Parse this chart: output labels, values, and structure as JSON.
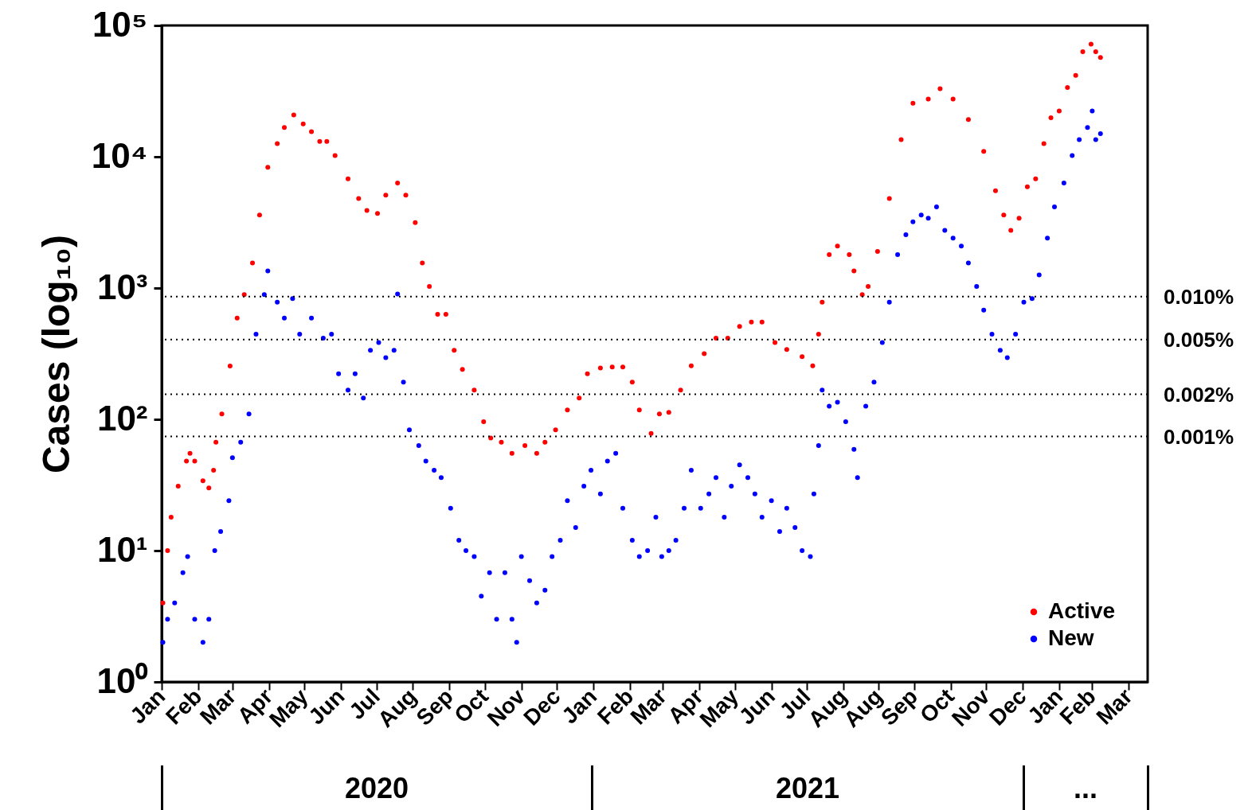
{
  "chart_data": {
    "type": "scatter",
    "ylabel": "Cases (log₁₀)",
    "log": "y",
    "grid": false,
    "legend": "bottom right",
    "marker": "circle",
    "xlim": [
      "2020-01-01",
      "2022-04-16"
    ],
    "xticks": [
      {
        "value": "2020-01-01",
        "label": "Jan"
      },
      {
        "value": "2020-02-01",
        "label": "Feb"
      },
      {
        "value": "2020-03-01",
        "label": "Mar"
      },
      {
        "value": "2020-04-01",
        "label": "Apr"
      },
      {
        "value": "2020-05-01",
        "label": "May"
      },
      {
        "value": "2020-06-01",
        "label": "Jun"
      },
      {
        "value": "2020-07-01",
        "label": "Jul"
      },
      {
        "value": "2020-08-01",
        "label": "Aug"
      },
      {
        "value": "2020-09-01",
        "label": "Sep"
      },
      {
        "value": "2020-10-01",
        "label": "Oct"
      },
      {
        "value": "2020-11-01",
        "label": "Nov"
      },
      {
        "value": "2020-12-01",
        "label": "Dec"
      },
      {
        "value": "2021-01-01",
        "label": "Jan"
      },
      {
        "value": "2021-02-01",
        "label": "Feb"
      },
      {
        "value": "2021-03-01",
        "label": "Mar"
      },
      {
        "value": "2021-04-01",
        "label": "Apr"
      },
      {
        "value": "2021-05-01",
        "label": "May"
      },
      {
        "value": "2021-06-01",
        "label": "Jun"
      },
      {
        "value": "2021-07-01",
        "label": "Jul"
      },
      {
        "value": "2021-08-01",
        "label": "Aug"
      },
      {
        "value": "2021-08-31",
        "label": "Aug"
      },
      {
        "value": "2021-09-30",
        "label": "Sep"
      },
      {
        "value": "2021-10-31",
        "label": "Oct"
      },
      {
        "value": "2021-11-30",
        "label": "Nov"
      },
      {
        "value": "2021-12-31",
        "label": "Dec"
      },
      {
        "value": "2022-01-31",
        "label": "Jan"
      },
      {
        "value": "2022-02-28",
        "label": "Feb"
      },
      {
        "value": "2022-03-31",
        "label": "Mar"
      }
    ],
    "ylim": [
      1,
      100000
    ],
    "yticks": [
      {
        "value": 1,
        "label": "10⁰"
      },
      {
        "value": 10,
        "label": "10¹"
      },
      {
        "value": 100,
        "label": "10²"
      },
      {
        "value": 1000,
        "label": "10³"
      },
      {
        "value": 10000,
        "label": "10⁴"
      },
      {
        "value": 100000,
        "label": "10⁵"
      }
    ],
    "ref_lines": [
      {
        "axis": "y",
        "value": 860,
        "color": "#000000",
        "line_style": "dotted"
      },
      {
        "axis": "y",
        "value": 405,
        "color": "#000000",
        "line_style": "dotted"
      },
      {
        "axis": "y",
        "value": 155,
        "color": "#000000",
        "line_style": "dotted"
      },
      {
        "axis": "y",
        "value": 74,
        "color": "#000000",
        "line_style": "dotted"
      }
    ],
    "annotations": [
      "2020",
      "2021",
      "...",
      "0.010%",
      "0.005%",
      "0.002%",
      "0.001%"
    ],
    "series": [
      {
        "name": "Active",
        "color": "#ff0000",
        "x": [
          "2020-01-02",
          "2020-01-06",
          "2020-01-09",
          "2020-01-15",
          "2020-01-22",
          "2020-01-25",
          "2020-01-29",
          "2020-02-05",
          "2020-02-10",
          "2020-02-14",
          "2020-02-16",
          "2020-02-21",
          "2020-02-28",
          "2020-03-05",
          "2020-03-11",
          "2020-03-18",
          "2020-03-24",
          "2020-03-31",
          "2020-04-08",
          "2020-04-14",
          "2020-04-22",
          "2020-04-30",
          "2020-05-07",
          "2020-05-14",
          "2020-05-20",
          "2020-05-27",
          "2020-06-07",
          "2020-06-16",
          "2020-06-23",
          "2020-07-02",
          "2020-07-09",
          "2020-07-19",
          "2020-07-26",
          "2020-08-03",
          "2020-08-09",
          "2020-08-15",
          "2020-08-22",
          "2020-08-29",
          "2020-09-05",
          "2020-09-12",
          "2020-09-22",
          "2020-09-30",
          "2020-10-06",
          "2020-10-15",
          "2020-10-24",
          "2020-11-04",
          "2020-11-14",
          "2020-11-21",
          "2020-11-30",
          "2020-12-10",
          "2020-12-20",
          "2020-12-27",
          "2021-01-07",
          "2021-01-17",
          "2021-01-26",
          "2021-02-03",
          "2021-02-09",
          "2021-02-19",
          "2021-02-26",
          "2021-03-06",
          "2021-03-16",
          "2021-03-25",
          "2021-04-05",
          "2021-04-15",
          "2021-04-25",
          "2021-05-05",
          "2021-05-15",
          "2021-05-24",
          "2021-06-04",
          "2021-06-14",
          "2021-06-27",
          "2021-07-06",
          "2021-07-11",
          "2021-07-14",
          "2021-07-20",
          "2021-07-27",
          "2021-08-06",
          "2021-08-10",
          "2021-08-17",
          "2021-08-22",
          "2021-08-30",
          "2021-09-09",
          "2021-09-19",
          "2021-09-29",
          "2021-10-12",
          "2021-10-22",
          "2021-11-02",
          "2021-11-15",
          "2021-11-28",
          "2021-12-08",
          "2021-12-15",
          "2021-12-21",
          "2021-12-28",
          "2022-01-04",
          "2022-01-11",
          "2022-01-18",
          "2022-01-24",
          "2022-01-31",
          "2022-02-07",
          "2022-02-14",
          "2022-02-20",
          "2022-02-27",
          "2022-03-03",
          "2022-03-07"
        ],
        "values": [
          4,
          10,
          18,
          31,
          48,
          55,
          48,
          34,
          30,
          41,
          67,
          110,
          255,
          590,
          890,
          1550,
          3600,
          8300,
          12600,
          16700,
          20800,
          17800,
          15500,
          13100,
          13100,
          10200,
          6800,
          4800,
          3900,
          3700,
          5100,
          6300,
          5100,
          3150,
          1550,
          1030,
          630,
          630,
          335,
          240,
          167,
          96,
          72,
          67,
          55,
          63,
          55,
          67,
          83,
          118,
          145,
          222,
          246,
          250,
          250,
          192,
          118,
          78,
          110,
          113,
          167,
          256,
          316,
          415,
          415,
          510,
          550,
          550,
          385,
          340,
          300,
          256,
          445,
          780,
          1800,
          2090,
          1800,
          1350,
          890,
          1030,
          1900,
          4800,
          13500,
          25600,
          27500,
          33000,
          27500,
          19200,
          11000,
          5500,
          3600,
          2750,
          3400,
          5900,
          6800,
          12600,
          19800,
          22300,
          33700,
          41700,
          63000,
          72000,
          63000,
          57000
        ]
      },
      {
        "name": "New",
        "color": "#0000ff",
        "x": [
          "2020-01-02",
          "2020-01-06",
          "2020-01-12",
          "2020-01-19",
          "2020-01-23",
          "2020-01-29",
          "2020-02-05",
          "2020-02-10",
          "2020-02-15",
          "2020-02-20",
          "2020-02-27",
          "2020-03-01",
          "2020-03-08",
          "2020-03-15",
          "2020-03-21",
          "2020-03-28",
          "2020-03-31",
          "2020-04-08",
          "2020-04-14",
          "2020-04-21",
          "2020-04-27",
          "2020-05-07",
          "2020-05-17",
          "2020-05-24",
          "2020-05-30",
          "2020-06-07",
          "2020-06-13",
          "2020-06-20",
          "2020-06-26",
          "2020-07-03",
          "2020-07-09",
          "2020-07-16",
          "2020-07-19",
          "2020-07-24",
          "2020-07-29",
          "2020-08-06",
          "2020-08-12",
          "2020-08-19",
          "2020-08-25",
          "2020-09-02",
          "2020-09-09",
          "2020-09-15",
          "2020-09-22",
          "2020-09-28",
          "2020-10-05",
          "2020-10-11",
          "2020-10-18",
          "2020-10-24",
          "2020-10-28",
          "2020-11-01",
          "2020-11-08",
          "2020-11-14",
          "2020-11-21",
          "2020-11-27",
          "2020-12-04",
          "2020-12-10",
          "2020-12-17",
          "2020-12-24",
          "2020-12-30",
          "2021-01-07",
          "2021-01-13",
          "2021-01-20",
          "2021-01-26",
          "2021-02-03",
          "2021-02-09",
          "2021-02-16",
          "2021-02-23",
          "2021-02-28",
          "2021-03-06",
          "2021-03-12",
          "2021-03-19",
          "2021-03-25",
          "2021-04-02",
          "2021-04-09",
          "2021-04-15",
          "2021-04-22",
          "2021-04-28",
          "2021-05-05",
          "2021-05-12",
          "2021-05-18",
          "2021-05-24",
          "2021-06-01",
          "2021-06-08",
          "2021-06-14",
          "2021-06-21",
          "2021-06-27",
          "2021-07-04",
          "2021-07-07",
          "2021-07-11",
          "2021-07-14",
          "2021-07-20",
          "2021-07-27",
          "2021-08-03",
          "2021-08-10",
          "2021-08-13",
          "2021-08-20",
          "2021-08-27",
          "2021-09-03",
          "2021-09-09",
          "2021-09-16",
          "2021-09-23",
          "2021-09-29",
          "2021-10-06",
          "2021-10-12",
          "2021-10-19",
          "2021-10-26",
          "2021-11-02",
          "2021-11-09",
          "2021-11-15",
          "2021-11-22",
          "2021-11-28",
          "2021-12-05",
          "2021-12-12",
          "2021-12-18",
          "2021-12-25",
          "2022-01-01",
          "2022-01-08",
          "2022-01-14",
          "2022-01-21",
          "2022-01-27",
          "2022-02-04",
          "2022-02-11",
          "2022-02-17",
          "2022-02-24",
          "2022-02-28",
          "2022-03-03",
          "2022-03-07"
        ],
        "values": [
          2,
          3,
          4,
          6.8,
          9,
          3,
          2,
          3,
          10,
          14,
          24,
          51,
          67,
          110,
          445,
          890,
          1350,
          780,
          590,
          830,
          445,
          590,
          415,
          445,
          222,
          167,
          222,
          145,
          335,
          385,
          295,
          335,
          900,
          192,
          83,
          63,
          48,
          41,
          36,
          21,
          12,
          10,
          9,
          4.5,
          6.8,
          3,
          6.8,
          3,
          2,
          9,
          5.9,
          4,
          5,
          9,
          12,
          24,
          15,
          31,
          41,
          27,
          48,
          55,
          21,
          12,
          9,
          10,
          18,
          9,
          10,
          12,
          21,
          41,
          21,
          27,
          36,
          18,
          31,
          45,
          36,
          27,
          18,
          24,
          14,
          21,
          15,
          10,
          9,
          27,
          63,
          167,
          126,
          135,
          96,
          59,
          36,
          126,
          192,
          385,
          780,
          1800,
          2550,
          3200,
          3600,
          3400,
          4150,
          2750,
          2400,
          2090,
          1550,
          1030,
          680,
          445,
          335,
          295,
          445,
          780,
          830,
          1260,
          2400,
          4150,
          6300,
          10200,
          13500,
          16700,
          22300,
          13500,
          15000
        ]
      }
    ]
  }
}
